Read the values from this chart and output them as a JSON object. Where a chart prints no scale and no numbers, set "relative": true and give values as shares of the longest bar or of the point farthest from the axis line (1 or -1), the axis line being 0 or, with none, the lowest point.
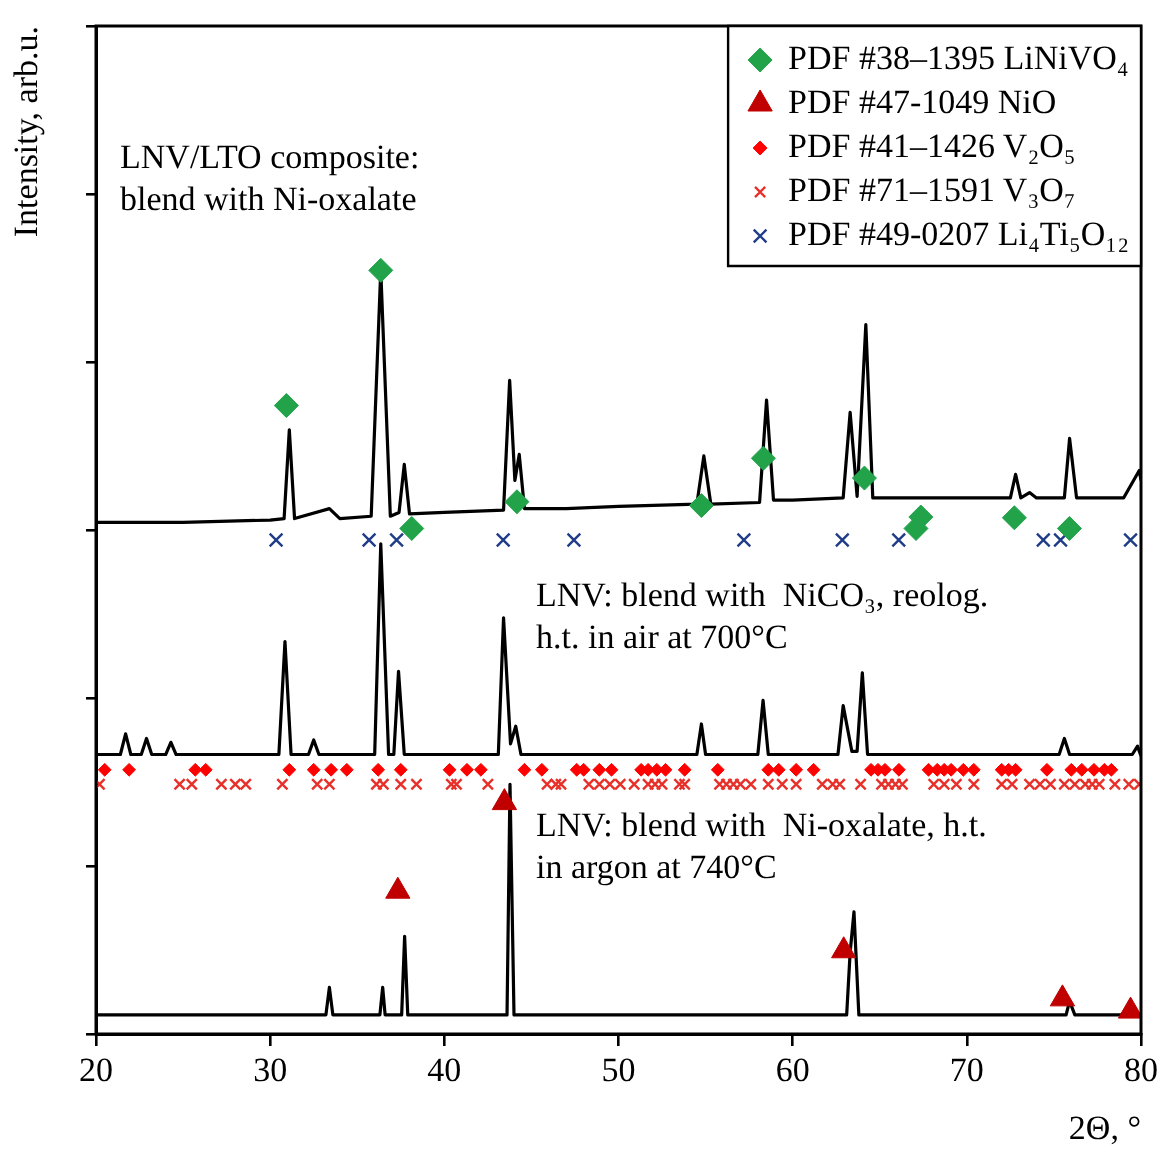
{
  "chart_data": {
    "type": "line",
    "xlabel": "2Θ, °",
    "ylabel": "Intensity, arb.u.",
    "relative": true,
    "xlim": [
      20,
      80
    ],
    "xticks": [
      20,
      30,
      40,
      50,
      60,
      70,
      80
    ],
    "grid": false,
    "legend": "top right",
    "marker": "none",
    "line_style": "solid",
    "annotations": [
      "LNV/LTO composite:\nblend with Ni-oxalate",
      "LNV: blend with  NiCO₃, reolog.\nh.t. in air at 700°C",
      "LNV: blend with  Ni-oxalate, h.t.\nin argon at 740°C"
    ],
    "series": [
      {
        "color": "#000000",
        "x": [
          20,
          25,
          30,
          30.8,
          31.1,
          31.4,
          33.4,
          34,
          35.8,
          36.35,
          36.9,
          37.4,
          37.7,
          38,
          40,
          43.4,
          43.75,
          44.05,
          44.3,
          44.6,
          47,
          50,
          54.5,
          54.9,
          55.3,
          58.1,
          58.5,
          58.9,
          60,
          62.9,
          63.3,
          63.7,
          64.2,
          64.6,
          67,
          70,
          72.5,
          72.8,
          73.1,
          73.6,
          74,
          75.6,
          75.9,
          76.3,
          79,
          79.9,
          80
        ],
        "values": [
          0.67,
          0.67,
          0.673,
          0.675,
          0.791,
          0.675,
          0.688,
          0.675,
          0.678,
          1,
          0.678,
          0.683,
          0.746,
          0.681,
          0.683,
          0.686,
          0.856,
          0.725,
          0.759,
          0.688,
          0.688,
          0.691,
          0.694,
          0.757,
          0.694,
          0.696,
          0.83,
          0.699,
          0.699,
          0.702,
          0.814,
          0.704,
          0.929,
          0.702,
          0.702,
          0.702,
          0.702,
          0.733,
          0.702,
          0.709,
          0.702,
          0.702,
          0.78,
          0.702,
          0.702,
          0.738,
          0.725
        ]
      },
      {
        "color": "#000000",
        "x": [
          20,
          21.4,
          21.7,
          22,
          22.6,
          22.9,
          23.2,
          24,
          24.3,
          24.6,
          30.5,
          30.85,
          31.2,
          32.2,
          32.5,
          32.8,
          36,
          36.35,
          36.8,
          37.1,
          37.37,
          37.7,
          43.1,
          43.4,
          43.8,
          44.1,
          44.4,
          54.5,
          54.76,
          55,
          58,
          58.3,
          58.6,
          62.6,
          62.9,
          63.4,
          63.7,
          64,
          64.3,
          75.3,
          75.6,
          75.9,
          79.5,
          79.8,
          80
        ],
        "values": [
          0.366,
          0.366,
          0.393,
          0.366,
          0.366,
          0.387,
          0.366,
          0.366,
          0.382,
          0.366,
          0.366,
          0.514,
          0.366,
          0.366,
          0.385,
          0.366,
          0.366,
          0.642,
          0.366,
          0.366,
          0.475,
          0.366,
          0.366,
          0.545,
          0.38,
          0.403,
          0.366,
          0.366,
          0.406,
          0.366,
          0.366,
          0.437,
          0.366,
          0.366,
          0.43,
          0.37,
          0.37,
          0.473,
          0.366,
          0.366,
          0.387,
          0.366,
          0.366,
          0.377,
          0.364
        ]
      },
      {
        "color": "#000000",
        "x": [
          20,
          33.2,
          33.4,
          33.6,
          36.3,
          36.46,
          36.6,
          37.55,
          37.72,
          37.9,
          43.6,
          43.77,
          44,
          63.1,
          63.3,
          63.52,
          63.8,
          75.7,
          75.9,
          76.2,
          80
        ],
        "values": [
          0.025,
          0.025,
          0.061,
          0.025,
          0.025,
          0.061,
          0.025,
          0.025,
          0.128,
          0.025,
          0.025,
          0.327,
          0.025,
          0.025,
          0.107,
          0.16,
          0.025,
          0.025,
          0.043,
          0.025,
          0.025
        ]
      },
      {
        "type": "scatter",
        "name": "PDF #38–1395 LiNiVO₄",
        "color": "#22a34a",
        "marker": "diamond",
        "x": [
          30.93,
          36.35,
          38.13,
          44.17,
          54.76,
          58.32,
          64.12,
          67.08,
          67.36,
          72.73,
          75.89
        ],
        "values": [
          0.823,
          1,
          0.662,
          0.697,
          0.692,
          0.754,
          0.728,
          0.662,
          0.677,
          0.676,
          0.662
        ]
      },
      {
        "type": "scatter",
        "name": "PDF #47-1049 NiO",
        "color": "#c00000",
        "marker": "triangle",
        "x": [
          37.33,
          43.45,
          62.93,
          75.49,
          79.4
        ],
        "values": [
          0.187,
          0.303,
          0.109,
          0.046,
          0.03
        ]
      },
      {
        "type": "scatter",
        "name": "PDF #41–1426 V₂O₅",
        "color": "#ff0000",
        "marker": "diamond",
        "x": [
          20.5,
          21.9,
          25.7,
          26.3,
          31.1,
          32.5,
          33.5,
          34.4,
          36.2,
          37.5,
          40.3,
          41.3,
          42.1,
          44.6,
          45.6,
          47.6,
          48,
          48.9,
          49.6,
          51.3,
          51.7,
          52.2,
          52.7,
          53.8,
          55.7,
          58.6,
          59.2,
          60.2,
          61.2,
          64.5,
          64.9,
          65.3,
          66.1,
          67.8,
          68.3,
          68.7,
          69.1,
          69.8,
          70.4,
          72,
          72.4,
          72.8,
          74.6,
          76,
          76.6,
          77.3,
          77.9,
          78.3
        ],
        "values": [
          0.346,
          0.346,
          0.346,
          0.346,
          0.346,
          0.346,
          0.346,
          0.346,
          0.346,
          0.346,
          0.346,
          0.346,
          0.346,
          0.346,
          0.346,
          0.346,
          0.346,
          0.346,
          0.346,
          0.346,
          0.346,
          0.346,
          0.346,
          0.346,
          0.346,
          0.346,
          0.346,
          0.346,
          0.346,
          0.346,
          0.346,
          0.346,
          0.346,
          0.346,
          0.346,
          0.346,
          0.346,
          0.346,
          0.346,
          0.346,
          0.346,
          0.346,
          0.346,
          0.346,
          0.346,
          0.346,
          0.346,
          0.346
        ]
      },
      {
        "type": "scatter",
        "name": "PDF #71–1591 V₃O₇",
        "color": "#e8302a",
        "marker": "cross",
        "x": [
          20.2,
          24.8,
          25.5,
          27.2,
          28,
          28.6,
          30.7,
          32.7,
          33.4,
          36.1,
          36.5,
          37.5,
          38.4,
          40.4,
          40.7,
          42.5,
          45.9,
          46.4,
          46.7,
          48.3,
          48.9,
          49.5,
          50.1,
          50.9,
          51.7,
          52.1,
          52.5,
          53.5,
          53.8,
          55.8,
          56.2,
          56.6,
          57,
          57.6,
          58.6,
          59.4,
          60.2,
          61.7,
          62.3,
          62.7,
          63.9,
          65.1,
          65.5,
          65.9,
          66.3,
          68.1,
          68.7,
          69.4,
          70.4,
          72,
          72.6,
          73.6,
          74.2,
          74.8,
          75.6,
          76.2,
          76.8,
          77.2,
          77.6,
          78.5,
          79.3,
          79.9
        ],
        "values": [
          0.327,
          0.327,
          0.327,
          0.327,
          0.327,
          0.327,
          0.327,
          0.327,
          0.327,
          0.327,
          0.327,
          0.327,
          0.327,
          0.327,
          0.327,
          0.327,
          0.327,
          0.327,
          0.327,
          0.327,
          0.327,
          0.327,
          0.327,
          0.327,
          0.327,
          0.327,
          0.327,
          0.327,
          0.327,
          0.327,
          0.327,
          0.327,
          0.327,
          0.327,
          0.327,
          0.327,
          0.327,
          0.327,
          0.327,
          0.327,
          0.327,
          0.327,
          0.327,
          0.327,
          0.327,
          0.327,
          0.327,
          0.327,
          0.327,
          0.327,
          0.327,
          0.327,
          0.327,
          0.327,
          0.327,
          0.327,
          0.327,
          0.327,
          0.327,
          0.327,
          0.327,
          0.327
        ]
      },
      {
        "type": "scatter",
        "name": "PDF #49-0207 Li₄Ti₅O₁₂",
        "color": "#1f3c88",
        "marker": "cross",
        "x": [
          30.34,
          35.68,
          37.26,
          43.38,
          47.44,
          57.2,
          62.85,
          66.09,
          74.39,
          75.38,
          79.4
        ],
        "values": [
          0.647,
          0.647,
          0.647,
          0.647,
          0.647,
          0.647,
          0.647,
          0.647,
          0.647,
          0.647,
          0.647
        ]
      }
    ]
  }
}
